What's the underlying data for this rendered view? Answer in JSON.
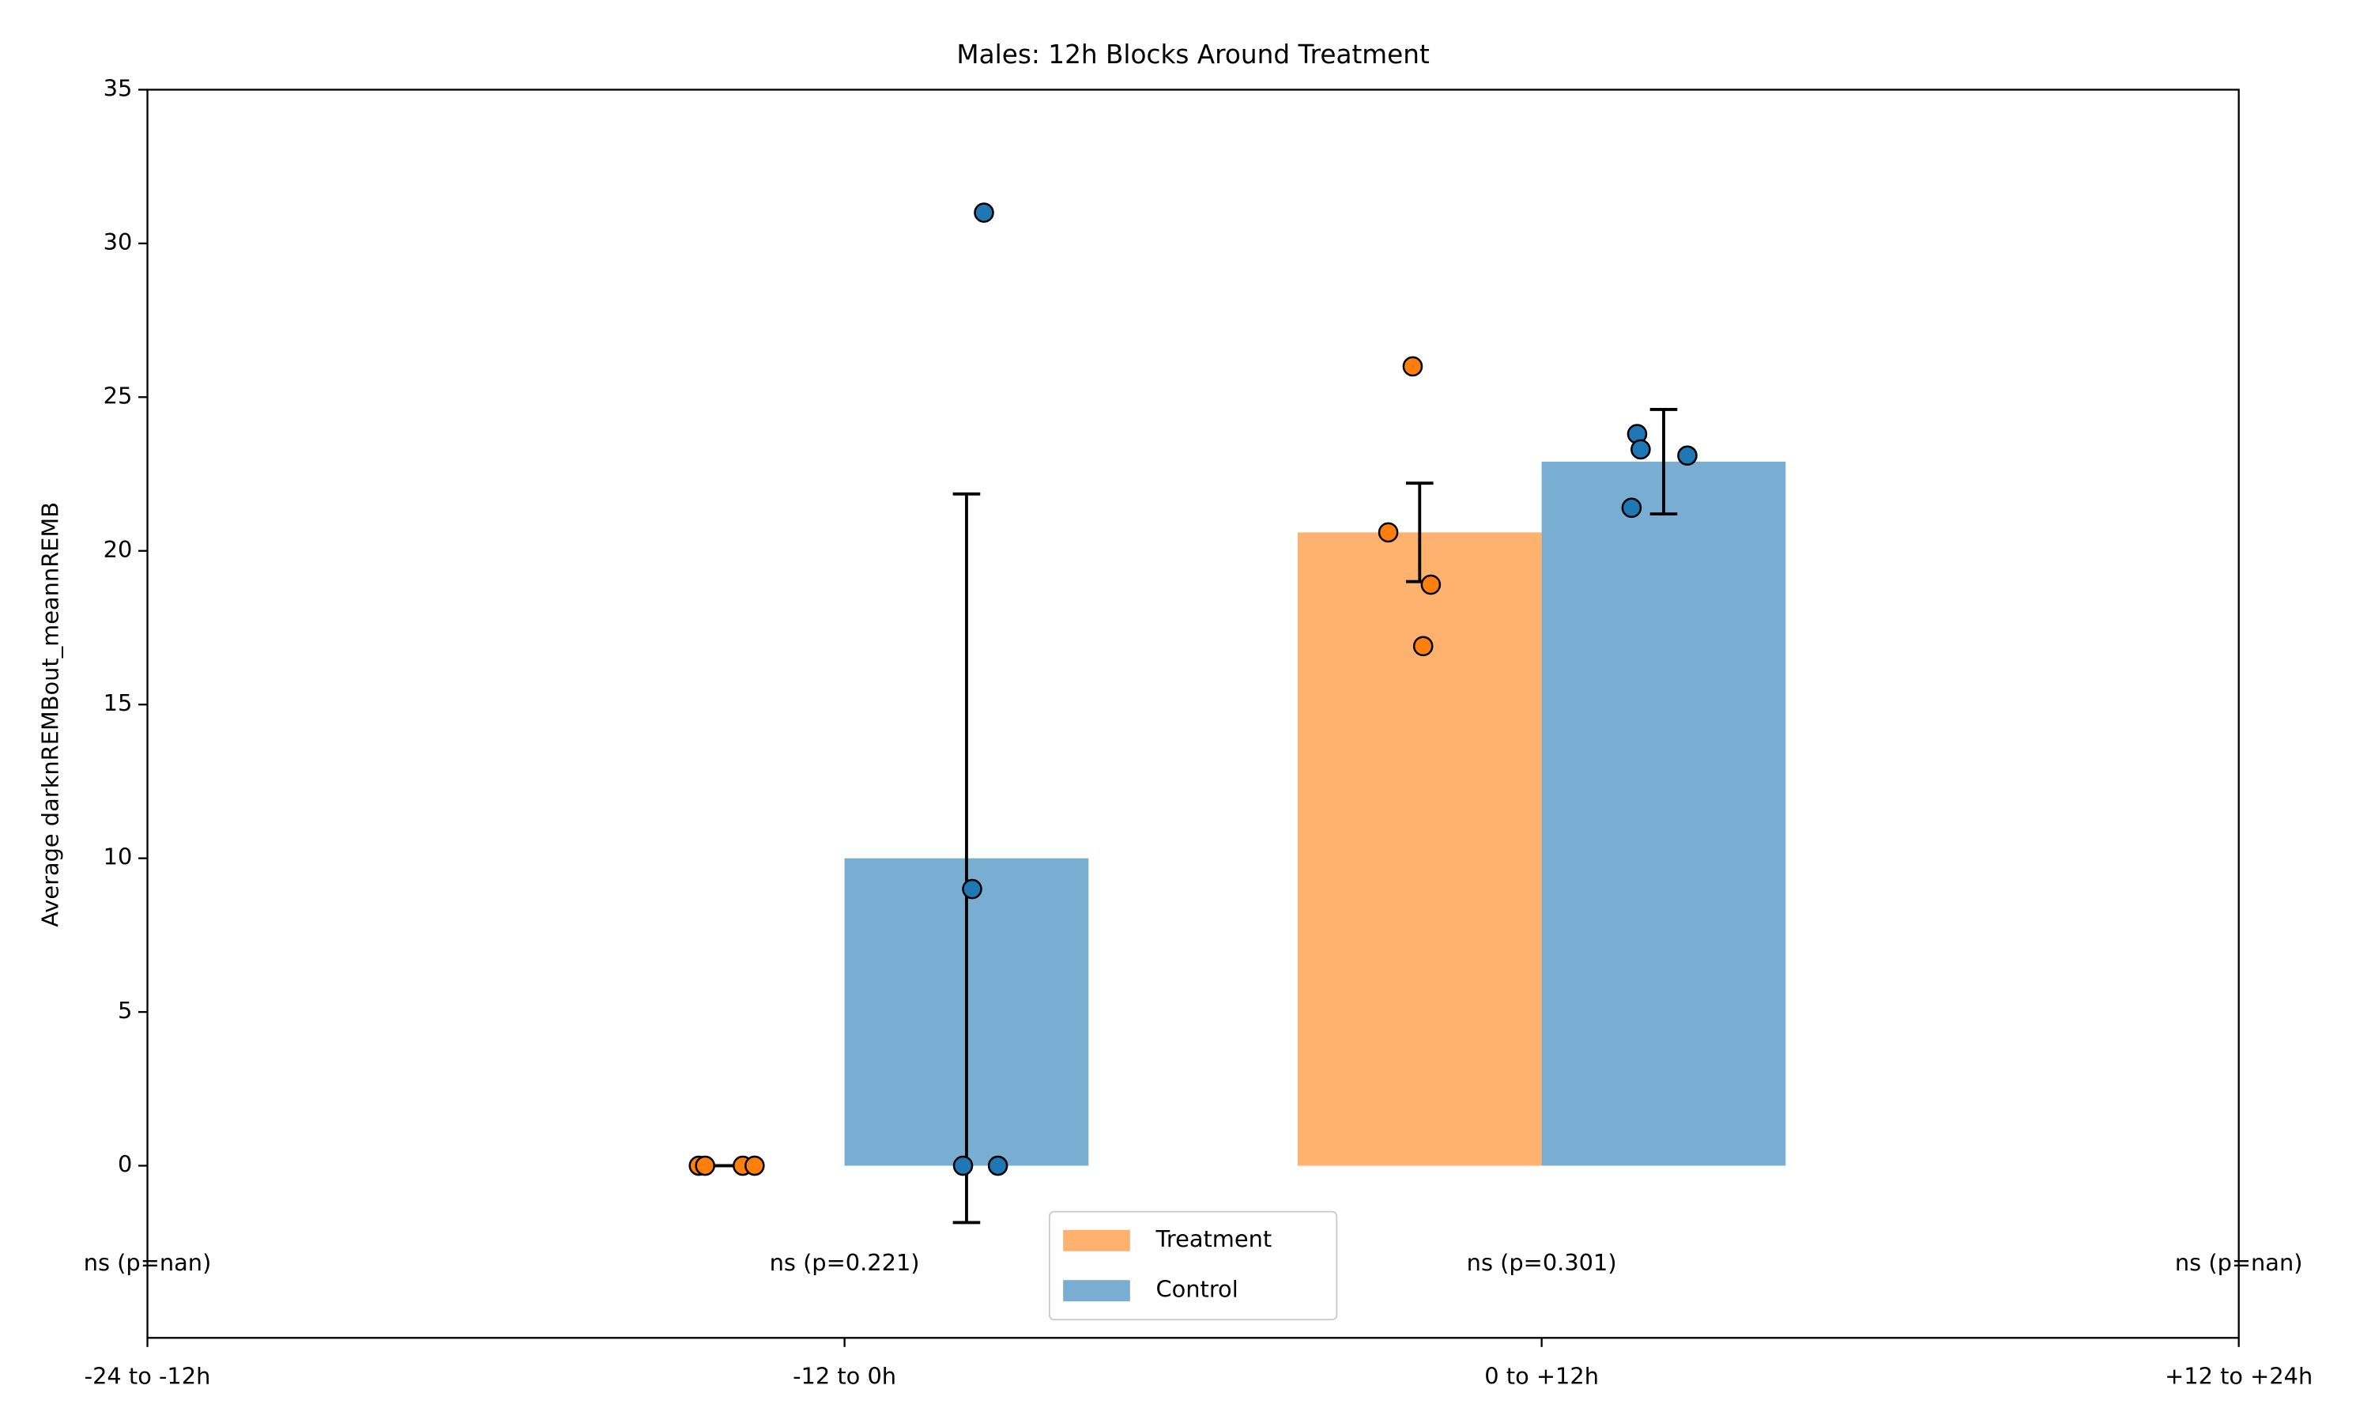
{
  "chart_data": {
    "type": "bar",
    "title": "Males: 12h Blocks Around Treatment",
    "ylabel": "Average darknREMBout_meannREMB",
    "categories": [
      "-24 to -12h",
      "-12 to 0h",
      "0 to +12h",
      "+12 to +24h"
    ],
    "ylim": [
      -5.6,
      35
    ],
    "yticks": [
      0,
      5,
      10,
      15,
      20,
      25,
      30,
      35
    ],
    "series": [
      {
        "name": "Treatment",
        "color": "#ff7f0e",
        "values": [
          null,
          0,
          20.6,
          null
        ],
        "errors": [
          null,
          0,
          1.6,
          null
        ],
        "points": {
          "x": [
            0.791,
            0.8,
            0.854,
            0.871,
            1.815,
            1.78,
            1.841,
            1.83
          ],
          "y": [
            0,
            0,
            0,
            0,
            26,
            20.6,
            18.9,
            16.9
          ]
        }
      },
      {
        "name": "Control",
        "color": "#1f77b4",
        "values": [
          null,
          10,
          22.9,
          null
        ],
        "errors": [
          null,
          11.85,
          1.7,
          null
        ],
        "points": {
          "x": [
            1.2,
            1.183,
            1.17,
            1.22,
            2.137,
            2.142,
            2.209,
            2.129
          ],
          "y": [
            31,
            9,
            0,
            0,
            23.8,
            23.3,
            23.1,
            21.4
          ]
        }
      }
    ],
    "annotations": [
      "ns (p=nan)",
      "ns (p=0.221)",
      "ns (p=0.301)",
      "ns (p=nan)"
    ],
    "annotation_y": -3.2,
    "legend": "lower center"
  }
}
